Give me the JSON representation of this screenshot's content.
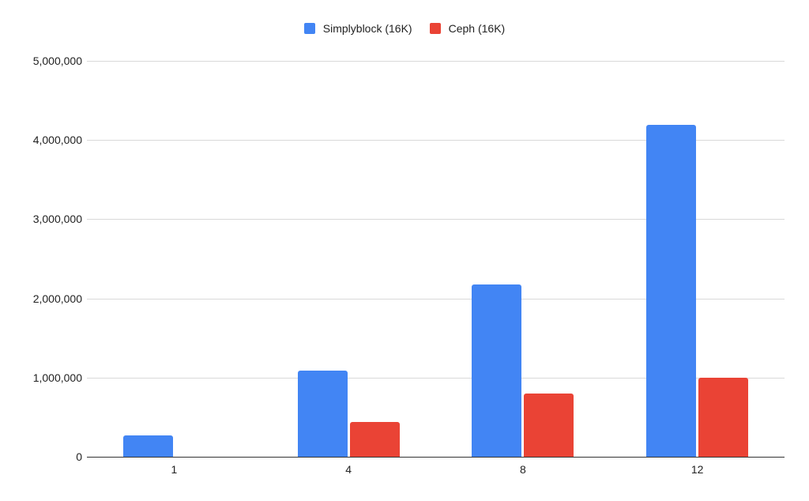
{
  "chart_data": {
    "type": "bar",
    "title": "",
    "xlabel": "",
    "ylabel": "",
    "categories": [
      "1",
      "4",
      "8",
      "12"
    ],
    "series": [
      {
        "name": "Simplyblock (16K)",
        "color": "#4285f4",
        "values": [
          270000,
          1090000,
          2180000,
          4190000
        ]
      },
      {
        "name": "Ceph (16K)",
        "color": "#ea4335",
        "values": [
          0,
          440000,
          800000,
          1000000
        ]
      }
    ],
    "ylim": [
      0,
      5000000
    ],
    "yticks": [
      0,
      1000000,
      2000000,
      3000000,
      4000000,
      5000000
    ],
    "ytick_labels": [
      "0",
      "1,000,000",
      "2,000,000",
      "3,000,000",
      "4,000,000",
      "5,000,000"
    ],
    "grid": true,
    "legend_position": "top"
  },
  "legend": {
    "items": [
      {
        "label": "Simplyblock (16K)",
        "color": "#4285f4"
      },
      {
        "label": "Ceph (16K)",
        "color": "#ea4335"
      }
    ]
  }
}
